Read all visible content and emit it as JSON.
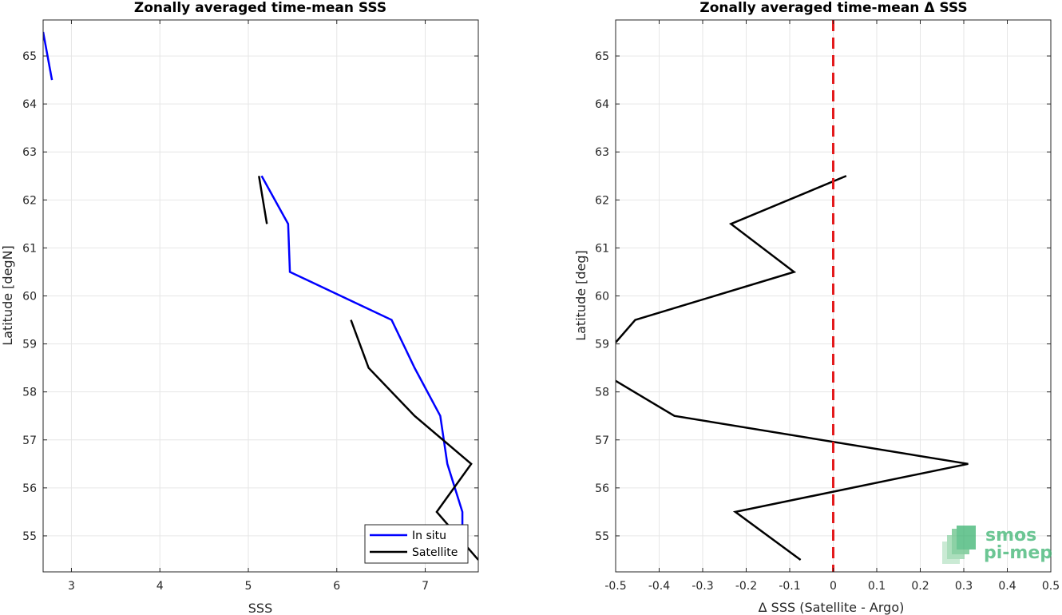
{
  "chart_data": [
    {
      "type": "line",
      "title": "Zonally averaged time-mean SSS",
      "xlabel": "SSS",
      "ylabel": "Latitude [degN]",
      "xlim": [
        2.68,
        7.6
      ],
      "ylim": [
        54.25,
        65.75
      ],
      "xticks": [
        3,
        4,
        5,
        6,
        7
      ],
      "yticks": [
        55,
        56,
        57,
        58,
        59,
        60,
        61,
        62,
        63,
        64,
        65
      ],
      "grid": true,
      "legend": "bottom-right",
      "series": [
        {
          "name": "In situ",
          "color": "#0000ff",
          "segments": [
            [
              {
                "x": 2.68,
                "y": 65.5
              },
              {
                "x": 2.78,
                "y": 64.5
              }
            ],
            [
              {
                "x": 5.15,
                "y": 62.5
              },
              {
                "x": 5.45,
                "y": 61.5
              },
              {
                "x": 5.47,
                "y": 60.5
              },
              {
                "x": 6.62,
                "y": 59.5
              },
              {
                "x": 6.88,
                "y": 58.5
              },
              {
                "x": 7.17,
                "y": 57.5
              },
              {
                "x": 7.25,
                "y": 56.5
              },
              {
                "x": 7.42,
                "y": 55.5
              },
              {
                "x": 7.42,
                "y": 54.9
              }
            ]
          ]
        },
        {
          "name": "Satellite",
          "color": "#000000",
          "segments": [
            [
              {
                "x": 5.12,
                "y": 62.5
              },
              {
                "x": 5.21,
                "y": 61.5
              }
            ],
            [
              {
                "x": 6.16,
                "y": 59.5
              },
              {
                "x": 6.36,
                "y": 58.5
              },
              {
                "x": 6.88,
                "y": 57.5
              },
              {
                "x": 7.52,
                "y": 56.5
              },
              {
                "x": 7.13,
                "y": 55.5
              },
              {
                "x": 7.6,
                "y": 54.5
              }
            ]
          ]
        }
      ]
    },
    {
      "type": "line",
      "title": "Zonally averaged time-mean Δ SSS",
      "xlabel": "Δ SSS (Satellite - Argo)",
      "ylabel": "Latitude [deg]",
      "xlim": [
        -0.5,
        0.5
      ],
      "ylim": [
        54.25,
        65.75
      ],
      "xticks": [
        -0.5,
        -0.4,
        -0.3,
        -0.2,
        -0.1,
        0,
        0.1,
        0.2,
        0.3,
        0.4,
        0.5
      ],
      "yticks": [
        55,
        56,
        57,
        58,
        59,
        60,
        61,
        62,
        63,
        64,
        65
      ],
      "grid": true,
      "reference_line": {
        "x": 0,
        "color": "#e31a1c",
        "style": "dashed"
      },
      "series": [
        {
          "color": "#000000",
          "segments": [
            [
              {
                "x": 0.03,
                "y": 62.5
              },
              {
                "x": -0.235,
                "y": 61.5
              },
              {
                "x": -0.09,
                "y": 60.5
              },
              {
                "x": -0.455,
                "y": 59.5
              },
              {
                "x": -0.5,
                "y": 59.03
              }
            ],
            [
              {
                "x": -0.5,
                "y": 58.23
              },
              {
                "x": -0.365,
                "y": 57.5
              },
              {
                "x": 0.31,
                "y": 56.5
              },
              {
                "x": -0.225,
                "y": 55.5
              },
              {
                "x": -0.075,
                "y": 54.5
              }
            ]
          ]
        }
      ]
    }
  ],
  "watermark": {
    "line1": "smos",
    "line2": "pi-mep",
    "color": "#3cb371"
  }
}
